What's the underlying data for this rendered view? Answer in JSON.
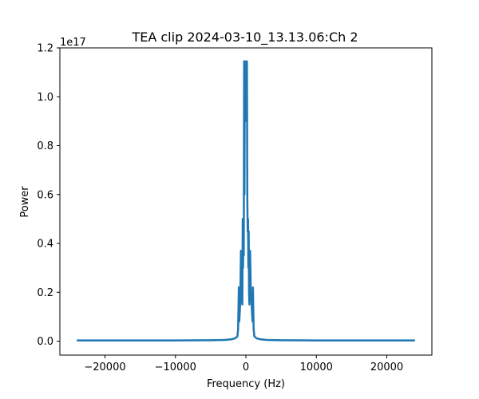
{
  "chart_data": {
    "type": "line",
    "title": "TEA clip 2024-03-10_13.13.06:Ch 2",
    "xlabel": "Frequency (Hz)",
    "ylabel": "Power",
    "y_offset_label": "1e17",
    "xlim": [
      -26400,
      26400
    ],
    "ylim": [
      -0.057,
      1.2
    ],
    "x_ticks": [
      -20000,
      -10000,
      0,
      10000,
      20000
    ],
    "x_tick_labels": [
      "−20000",
      "−10000",
      "0",
      "10000",
      "20000"
    ],
    "y_ticks": [
      0.0,
      0.2,
      0.4,
      0.6,
      0.8,
      1.0,
      1.2
    ],
    "y_tick_labels": [
      "0.0",
      "0.2",
      "0.4",
      "0.6",
      "0.8",
      "1.0",
      "1.2"
    ],
    "grid": false,
    "color": "#1f77b4",
    "series": [
      {
        "x": [
          -24000,
          -20000,
          -15000,
          -10000,
          -5000,
          -3000,
          -2000,
          -1500,
          -1200,
          -1100,
          -1000,
          -950,
          -900,
          -800,
          -700,
          -600,
          -500,
          -450,
          -400,
          -350,
          -300,
          -250,
          -200,
          -150,
          -100,
          -50,
          0,
          50,
          100,
          150,
          200,
          250,
          300,
          350,
          400,
          450,
          500,
          600,
          700,
          800,
          900,
          950,
          1000,
          1100,
          1200,
          1500,
          2000,
          3000,
          5000,
          10000,
          15000,
          20000,
          24000
        ],
        "y": [
          0.003,
          0.003,
          0.003,
          0.003,
          0.004,
          0.005,
          0.008,
          0.012,
          0.02,
          0.05,
          0.22,
          0.08,
          0.1,
          0.16,
          0.37,
          0.2,
          0.15,
          0.5,
          0.3,
          0.45,
          0.35,
          1.145,
          0.6,
          1.145,
          0.9,
          1.145,
          1.1,
          1.145,
          0.9,
          1.145,
          0.6,
          0.45,
          0.5,
          0.3,
          0.45,
          0.2,
          0.15,
          0.37,
          0.2,
          0.16,
          0.1,
          0.08,
          0.22,
          0.05,
          0.02,
          0.012,
          0.008,
          0.005,
          0.004,
          0.003,
          0.003,
          0.003,
          0.003
        ]
      }
    ]
  }
}
